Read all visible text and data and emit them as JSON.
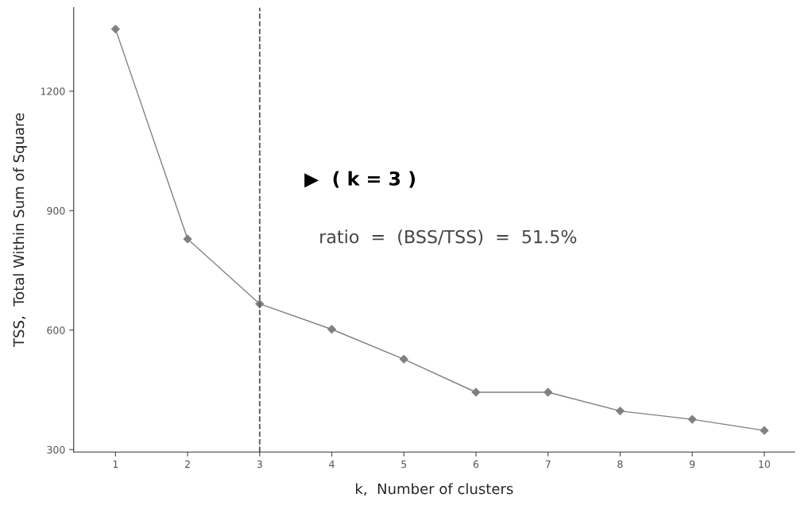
{
  "chart_data": {
    "type": "line",
    "xlabel": "k,  Number of clusters",
    "ylabel": "TSS,  Total Within Sum of Square",
    "x": [
      1,
      2,
      3,
      4,
      5,
      6,
      7,
      8,
      9,
      10
    ],
    "series": [
      {
        "color": "#808080",
        "values": [
          1356,
          829,
          666,
          602,
          527,
          444,
          444,
          397,
          376,
          348
        ]
      }
    ],
    "xlim": [
      0.42,
      10.42
    ],
    "ylim": [
      294,
      1410
    ],
    "xticks": [
      1,
      2,
      3,
      4,
      5,
      6,
      7,
      8,
      9,
      10
    ],
    "yticks": [
      300,
      600,
      900,
      1200
    ],
    "marker": "diamond",
    "line_style": "solid",
    "grid": false,
    "ref_lines": [
      {
        "axis": "x",
        "value": 3,
        "color": "#555555",
        "line_style": "dashed"
      }
    ],
    "annotations": [
      "▶  ( k = 3 )",
      "ratio  =  (BSS/TSS)  =  51.5%"
    ]
  }
}
